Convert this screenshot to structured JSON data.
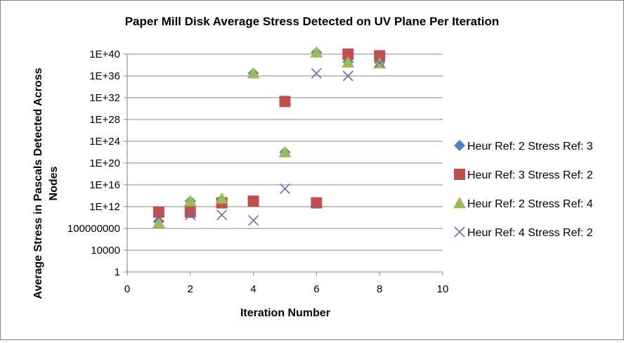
{
  "chart_data": {
    "type": "scatter",
    "title": "Paper Mill Disk Average Stress Detected on UV Plane Per Iteration",
    "xlabel": "Iteration Number",
    "ylabel": "Average Stress in Pascals Detected Across Nodes",
    "xlim": [
      0,
      10
    ],
    "x_ticks": [
      0,
      2,
      4,
      6,
      8,
      10
    ],
    "x_tick_labels": [
      "0",
      "2",
      "4",
      "6",
      "8",
      "10"
    ],
    "y_scale": "log",
    "ylim": [
      1,
      1e+40
    ],
    "y_ticks": [
      1,
      10000,
      100000000,
      1000000000000.0,
      1e+16,
      1e+20,
      1e+24,
      1e+28,
      1e+32,
      1e+36,
      1e+40
    ],
    "y_tick_labels": [
      "1",
      "10000",
      "100000000",
      "1E+12",
      "1E+16",
      "1E+20",
      "1E+24",
      "1E+28",
      "1E+32",
      "1E+36",
      "1E+40"
    ],
    "grid": "horizontal major gridlines",
    "legend_position": "right",
    "series": [
      {
        "name": "Heur Ref: 2 Stress Ref: 3",
        "color": "#4F81BD",
        "marker": "diamond",
        "x": [
          1,
          2,
          3,
          4,
          5,
          6,
          7,
          8
        ],
        "y": [
          2000000000.0,
          10000000000000.0,
          20000000000000.0,
          3e+36,
          1e+22,
          2e+40,
          4e+38,
          3e+38
        ]
      },
      {
        "name": "Heur Ref: 3 Stress Ref: 2",
        "color": "#C0504D",
        "marker": "square",
        "x": [
          1,
          2,
          3,
          4,
          5,
          6,
          7,
          8
        ],
        "y": [
          100000000000.0,
          100000000000.0,
          5000000000000.0,
          10000000000000.0,
          2e+31,
          5000000000000.0,
          1e+40,
          5e+39
        ]
      },
      {
        "name": "Heur Ref: 2 Stress Ref: 4",
        "color": "#9BBB59",
        "marker": "triangle",
        "x": [
          1,
          2,
          3,
          4,
          5,
          6,
          7,
          8
        ],
        "y": [
          1000000000.0,
          10000000000000.0,
          30000000000000.0,
          3e+36,
          1e+22,
          2e+40,
          3e+38,
          2e+38
        ]
      },
      {
        "name": "Heur Ref: 4 Stress Ref: 2",
        "color": "#8064A2",
        "marker": "x",
        "x": [
          1,
          2,
          3,
          4,
          5,
          6,
          7,
          8
        ],
        "y": [
          10000000000.0,
          30000000000.0,
          30000000000.0,
          3000000000.0,
          2000000000000000.0,
          3e+36,
          1e+36,
          3e+38
        ]
      }
    ]
  }
}
